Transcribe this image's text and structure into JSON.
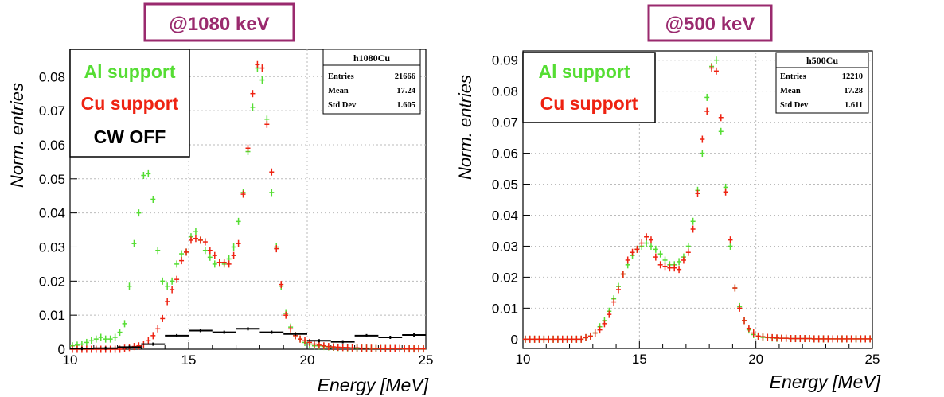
{
  "panels": [
    {
      "title": "@1080 keV",
      "stats_box": {
        "name": "h1080Cu",
        "rows": [
          {
            "label": "Entries",
            "value": "21666"
          },
          {
            "label": "Mean",
            "value": "17.24"
          },
          {
            "label": "Std Dev",
            "value": "1.605"
          }
        ]
      },
      "legend": [
        {
          "label": "Al support",
          "color": "#55dd33"
        },
        {
          "label": "Cu support",
          "color": "#ee2211"
        },
        {
          "label": "CW OFF",
          "color": "#000000"
        }
      ]
    },
    {
      "title": "@500 keV",
      "stats_box": {
        "name": "h500Cu",
        "rows": [
          {
            "label": "Entries",
            "value": "12210"
          },
          {
            "label": "Mean",
            "value": "17.28"
          },
          {
            "label": "Std Dev",
            "value": "1.611"
          }
        ]
      },
      "legend": [
        {
          "label": "Al support",
          "color": "#55dd33"
        },
        {
          "label": "Cu support",
          "color": "#ee2211"
        }
      ]
    }
  ],
  "colors": {
    "title_border": "#9a2a6e",
    "title_text": "#9a2a6e",
    "grid": "#bbbbbb"
  },
  "chart_data": [
    {
      "type": "scatter",
      "xlabel": "Energy [MeV]",
      "ylabel": "Norm. entries",
      "xlim": [
        10,
        25
      ],
      "ylim": [
        0,
        0.088
      ],
      "xticks": [
        10,
        15,
        20,
        25
      ],
      "yticks": [
        0,
        0.01,
        0.02,
        0.03,
        0.04,
        0.05,
        0.06,
        0.07,
        0.08
      ],
      "ytick_labels": [
        "0",
        "0.01",
        "0.02",
        "0.03",
        "0.04",
        "0.05",
        "0.06",
        "0.07",
        "0.08"
      ],
      "grid": true,
      "series": [
        {
          "name": "Al support",
          "color": "#55dd33",
          "x": [
            10.1,
            10.3,
            10.5,
            10.7,
            10.9,
            11.1,
            11.3,
            11.5,
            11.7,
            11.9,
            12.1,
            12.3,
            12.5,
            12.7,
            12.9,
            13.1,
            13.3,
            13.5,
            13.7,
            13.9,
            14.1,
            14.3,
            14.5,
            14.7,
            14.9,
            15.1,
            15.3,
            15.5,
            15.7,
            15.9,
            16.1,
            16.3,
            16.5,
            16.7,
            16.9,
            17.1,
            17.3,
            17.5,
            17.7,
            17.9,
            18.1,
            18.3,
            18.5,
            18.7,
            18.9,
            19.1,
            19.3,
            19.5,
            19.7,
            19.9,
            20.1,
            20.3,
            20.5,
            20.7,
            20.9,
            21.1,
            21.3,
            21.5,
            21.7,
            21.9,
            22.1,
            22.3,
            22.5,
            22.7,
            22.9,
            23.1,
            23.3,
            23.5,
            23.7,
            23.9,
            24.1,
            24.3,
            24.5,
            24.7,
            24.9
          ],
          "y": [
            0.001,
            0.0012,
            0.0015,
            0.002,
            0.0025,
            0.003,
            0.0035,
            0.003,
            0.003,
            0.0035,
            0.005,
            0.0075,
            0.0185,
            0.031,
            0.04,
            0.051,
            0.0515,
            0.044,
            0.029,
            0.02,
            0.0185,
            0.02,
            0.025,
            0.028,
            0.0285,
            0.033,
            0.0345,
            0.032,
            0.029,
            0.027,
            0.025,
            0.0255,
            0.025,
            0.0265,
            0.03,
            0.0375,
            0.046,
            0.058,
            0.071,
            0.0825,
            0.079,
            0.0675,
            0.046,
            0.03,
            0.0185,
            0.0105,
            0.0065,
            0.004,
            0.003,
            0.002,
            0.0015,
            0.001,
            0.001,
            0.0008,
            0.0007,
            0.0006,
            0.0005,
            0.0005,
            0.0004,
            0.0004,
            0.0003,
            0.0003,
            0.0003,
            0.0002,
            0.0002,
            0.0002,
            0.0002,
            0.0002,
            0.0002,
            0.0002,
            0.0001,
            0.0001,
            0.0001,
            0.0001,
            0.0001
          ]
        },
        {
          "name": "Cu support",
          "color": "#ee2211",
          "x": [
            10.1,
            10.3,
            10.5,
            10.7,
            10.9,
            11.1,
            11.3,
            11.5,
            11.7,
            11.9,
            12.1,
            12.3,
            12.5,
            12.7,
            12.9,
            13.1,
            13.3,
            13.5,
            13.7,
            13.9,
            14.1,
            14.3,
            14.5,
            14.7,
            14.9,
            15.1,
            15.3,
            15.5,
            15.7,
            15.9,
            16.1,
            16.3,
            16.5,
            16.7,
            16.9,
            17.1,
            17.3,
            17.5,
            17.7,
            17.9,
            18.1,
            18.3,
            18.5,
            18.7,
            18.9,
            19.1,
            19.3,
            19.5,
            19.7,
            19.9,
            20.1,
            20.3,
            20.5,
            20.7,
            20.9,
            21.1,
            21.3,
            21.5,
            21.7,
            21.9,
            22.1,
            22.3,
            22.5,
            22.7,
            22.9,
            23.1,
            23.3,
            23.5,
            23.7,
            23.9,
            24.1,
            24.3,
            24.5,
            24.7,
            24.9
          ],
          "y": [
            0,
            0,
            0,
            0,
            0,
            0,
            0,
            0,
            0,
            0,
            0,
            0.0003,
            0.0005,
            0.0008,
            0.001,
            0.0015,
            0.0025,
            0.004,
            0.006,
            0.009,
            0.014,
            0.0175,
            0.0205,
            0.026,
            0.0285,
            0.032,
            0.0325,
            0.032,
            0.0315,
            0.029,
            0.0275,
            0.0255,
            0.0255,
            0.025,
            0.0275,
            0.031,
            0.0455,
            0.059,
            0.075,
            0.0835,
            0.0825,
            0.066,
            0.052,
            0.0295,
            0.019,
            0.01,
            0.006,
            0.004,
            0.003,
            0.0025,
            0.002,
            0.0015,
            0.0012,
            0.001,
            0.0008,
            0.0007,
            0.0006,
            0.0005,
            0.0005,
            0.0004,
            0.0004,
            0.0003,
            0.0003,
            0.0003,
            0.0002,
            0.0002,
            0.0002,
            0.0002,
            0.0002,
            0.0002,
            0.0001,
            0.0001,
            0.0001,
            0.0001,
            0.0001
          ]
        },
        {
          "name": "CW OFF",
          "color": "#000000",
          "x": [
            10.5,
            11.5,
            12.5,
            13.5,
            14.5,
            15.5,
            16.5,
            17.5,
            18.5,
            19.5,
            20.5,
            21.5,
            22.5,
            23.5,
            24.5
          ],
          "y": [
            0.0002,
            0.0003,
            0.0006,
            0.0015,
            0.004,
            0.0055,
            0.005,
            0.006,
            0.005,
            0.0045,
            0.0025,
            0.0022,
            0.004,
            0.0035,
            0.0042
          ],
          "xerr": 0.5
        }
      ]
    },
    {
      "type": "scatter",
      "xlabel": "Energy [MeV]",
      "ylabel": "Norm. entries",
      "xlim": [
        10,
        25
      ],
      "ylim": [
        -0.003,
        0.093
      ],
      "xticks": [
        10,
        15,
        20,
        25
      ],
      "yticks": [
        0,
        0.01,
        0.02,
        0.03,
        0.04,
        0.05,
        0.06,
        0.07,
        0.08,
        0.09
      ],
      "ytick_labels": [
        "0",
        "0.01",
        "0.02",
        "0.03",
        "0.04",
        "0.05",
        "0.06",
        "0.07",
        "0.08",
        "0.09"
      ],
      "grid": true,
      "series": [
        {
          "name": "Al support",
          "color": "#55dd33",
          "x": [
            10.1,
            10.3,
            10.5,
            10.7,
            10.9,
            11.1,
            11.3,
            11.5,
            11.7,
            11.9,
            12.1,
            12.3,
            12.5,
            12.7,
            12.9,
            13.1,
            13.3,
            13.5,
            13.7,
            13.9,
            14.1,
            14.3,
            14.5,
            14.7,
            14.9,
            15.1,
            15.3,
            15.5,
            15.7,
            15.9,
            16.1,
            16.3,
            16.5,
            16.7,
            16.9,
            17.1,
            17.3,
            17.5,
            17.7,
            17.9,
            18.1,
            18.3,
            18.5,
            18.7,
            18.9,
            19.1,
            19.3,
            19.5,
            19.7,
            19.9,
            20.1,
            20.3,
            20.5,
            20.7,
            20.9,
            21.1,
            21.3,
            21.5,
            21.7,
            21.9,
            22.1,
            22.3,
            22.5,
            22.7,
            22.9,
            23.1,
            23.3,
            23.5,
            23.7,
            23.9,
            24.1,
            24.3,
            24.5,
            24.7,
            24.9
          ],
          "y": [
            0,
            0,
            0,
            0,
            0,
            0,
            0,
            0,
            0,
            0,
            0,
            0,
            0,
            0.0005,
            0.001,
            0.002,
            0.004,
            0.006,
            0.009,
            0.013,
            0.017,
            0.021,
            0.024,
            0.027,
            0.029,
            0.03,
            0.031,
            0.03,
            0.029,
            0.0275,
            0.0255,
            0.024,
            0.024,
            0.025,
            0.0265,
            0.03,
            0.038,
            0.048,
            0.06,
            0.078,
            0.088,
            0.09,
            0.067,
            0.049,
            0.03,
            0.0165,
            0.0105,
            0.006,
            0.003,
            0.0015,
            0.001,
            0.0006,
            0.0005,
            0.0004,
            0.0003,
            0.0003,
            0.0003,
            0.0002,
            0.0002,
            0.0002,
            0.0002,
            0.0002,
            0.0001,
            0.0001,
            0.0001,
            0.0001,
            0.0001,
            0.0001,
            0.0001,
            0.0001,
            0.0001,
            0.0001,
            0.0001,
            0.0001,
            0.0001
          ]
        },
        {
          "name": "Cu support",
          "color": "#ee2211",
          "x": [
            10.1,
            10.3,
            10.5,
            10.7,
            10.9,
            11.1,
            11.3,
            11.5,
            11.7,
            11.9,
            12.1,
            12.3,
            12.5,
            12.7,
            12.9,
            13.1,
            13.3,
            13.5,
            13.7,
            13.9,
            14.1,
            14.3,
            14.5,
            14.7,
            14.9,
            15.1,
            15.3,
            15.5,
            15.7,
            15.9,
            16.1,
            16.3,
            16.5,
            16.7,
            16.9,
            17.1,
            17.3,
            17.5,
            17.7,
            17.9,
            18.1,
            18.3,
            18.5,
            18.7,
            18.9,
            19.1,
            19.3,
            19.5,
            19.7,
            19.9,
            20.1,
            20.3,
            20.5,
            20.7,
            20.9,
            21.1,
            21.3,
            21.5,
            21.7,
            21.9,
            22.1,
            22.3,
            22.5,
            22.7,
            22.9,
            23.1,
            23.3,
            23.5,
            23.7,
            23.9,
            24.1,
            24.3,
            24.5,
            24.7,
            24.9
          ],
          "y": [
            0,
            0,
            0,
            0,
            0,
            0,
            0,
            0,
            0,
            0,
            0,
            0,
            0,
            0.0005,
            0.001,
            0.002,
            0.003,
            0.005,
            0.008,
            0.012,
            0.016,
            0.021,
            0.0255,
            0.028,
            0.029,
            0.031,
            0.033,
            0.032,
            0.0265,
            0.024,
            0.0235,
            0.023,
            0.023,
            0.0225,
            0.0255,
            0.028,
            0.0355,
            0.047,
            0.0645,
            0.0735,
            0.0875,
            0.0865,
            0.0715,
            0.0475,
            0.032,
            0.0165,
            0.01,
            0.006,
            0.0035,
            0.002,
            0.001,
            0.0008,
            0.0006,
            0.0005,
            0.0004,
            0.0003,
            0.0003,
            0.0002,
            0.0002,
            0.0002,
            0.0002,
            0.0002,
            0.0001,
            0.0001,
            0.0001,
            0.0001,
            0.0001,
            0.0001,
            0.0001,
            0.0001,
            0.0001,
            0.0001,
            0.0001,
            0.0001,
            0.0001
          ]
        }
      ]
    }
  ]
}
